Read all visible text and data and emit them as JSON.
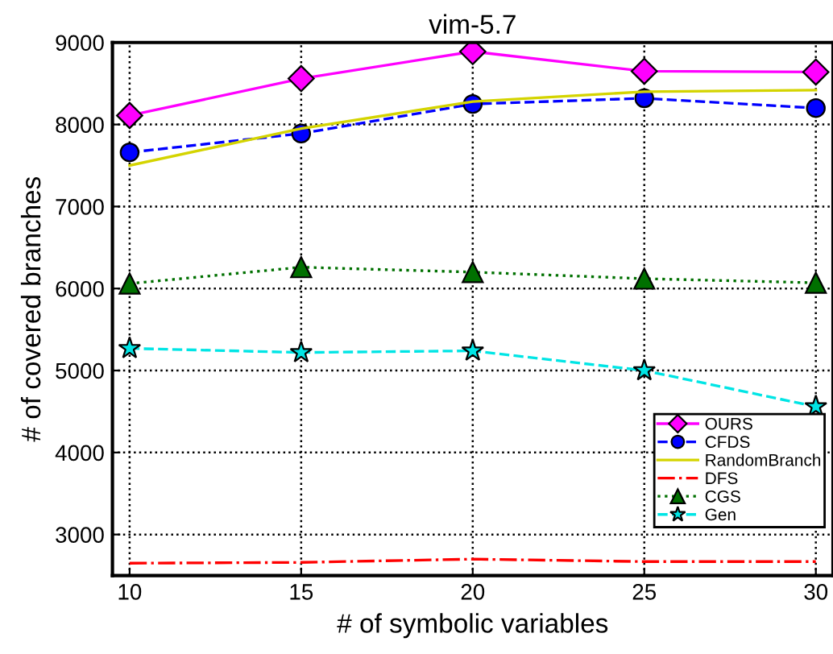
{
  "chart_data": {
    "type": "line",
    "title": "vim-5.7",
    "xlabel": "# of symbolic variables",
    "ylabel": "# of covered branches",
    "x": [
      10,
      15,
      20,
      25,
      30
    ],
    "series": [
      {
        "name": "OURS",
        "color": "#ff00ff",
        "marker": "diamond",
        "line_style": "solid",
        "values": [
          8110,
          8560,
          8890,
          8650,
          8640
        ]
      },
      {
        "name": "CFDS",
        "color": "#0000ff",
        "marker": "circle",
        "line_style": "dashed",
        "values": [
          7660,
          7890,
          8250,
          8320,
          8200
        ]
      },
      {
        "name": "RandomBranch",
        "color": "#d4d400",
        "marker": "none",
        "line_style": "solid",
        "values": [
          7500,
          7950,
          8280,
          8400,
          8420
        ]
      },
      {
        "name": "DFS",
        "color": "#ff0000",
        "marker": "none",
        "line_style": "dashdot",
        "values": [
          2650,
          2660,
          2700,
          2670,
          2670
        ]
      },
      {
        "name": "CGS",
        "color": "#007000",
        "marker": "triangle",
        "line_style": "dotted",
        "values": [
          6060,
          6260,
          6200,
          6120,
          6070
        ]
      },
      {
        "name": "Gen",
        "color": "#00e5e5",
        "marker": "star",
        "line_style": "dashed",
        "values": [
          5270,
          5220,
          5240,
          5000,
          4560
        ]
      }
    ],
    "xlim": [
      9.5,
      30.5
    ],
    "ylim": [
      2500,
      9000
    ],
    "xticks": [
      10,
      15,
      20,
      25,
      30
    ],
    "yticks": [
      3000,
      4000,
      5000,
      6000,
      7000,
      8000,
      9000
    ],
    "grid": true,
    "legend": "bottom right"
  }
}
